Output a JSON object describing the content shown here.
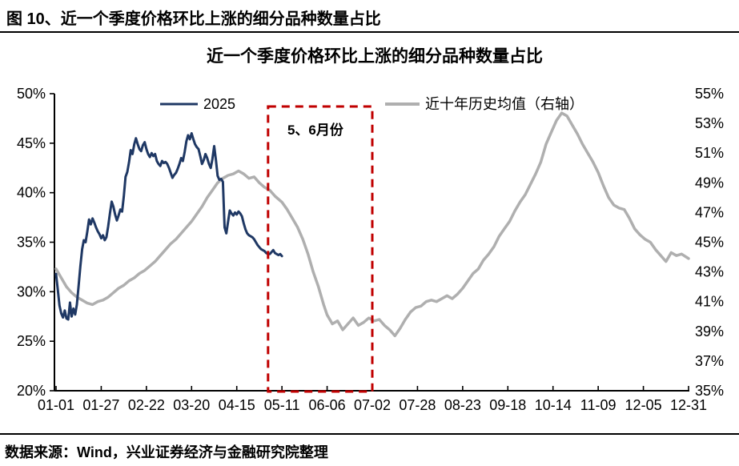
{
  "page": {
    "header_title": "图 10、近一个季度价格环比上涨的细分品种数量占比",
    "source_note": "数据来源：Wind，兴业证券经济与金融研究院整理"
  },
  "chart_data": {
    "type": "line",
    "title": "近一个季度价格环比上涨的细分品种数量占比",
    "grid": false,
    "legend_position": "top",
    "left_axis": {
      "min": 20,
      "max": 50,
      "step": 5,
      "unit": "%",
      "ticks": [
        "20%",
        "25%",
        "30%",
        "35%",
        "40%",
        "45%",
        "50%"
      ]
    },
    "right_axis": {
      "min": 35,
      "max": 55,
      "step": 2,
      "unit": "%",
      "ticks": [
        "35%",
        "37%",
        "39%",
        "41%",
        "43%",
        "45%",
        "47%",
        "49%",
        "51%",
        "53%",
        "55%"
      ]
    },
    "x_ticks": [
      "01-01",
      "01-27",
      "02-22",
      "03-20",
      "04-15",
      "05-11",
      "06-06",
      "07-02",
      "07-28",
      "08-23",
      "09-18",
      "10-14",
      "11-09",
      "12-05",
      "12-31"
    ],
    "annotation": {
      "text": "5、6月份",
      "x_start": "05-03",
      "x_end": "07-02",
      "color": "#C00000"
    },
    "series": [
      {
        "name": "2025",
        "axis": "left",
        "color": "#1F3864",
        "width": 3,
        "points": [
          [
            "01-01",
            31.8
          ],
          [
            "01-02",
            30.2
          ],
          [
            "01-03",
            28.6
          ],
          [
            "01-04",
            27.8
          ],
          [
            "01-05",
            27.4
          ],
          [
            "01-06",
            28.1
          ],
          [
            "01-07",
            27.3
          ],
          [
            "01-08",
            27.2
          ],
          [
            "01-09",
            28.9
          ],
          [
            "01-10",
            27.5
          ],
          [
            "01-11",
            28.3
          ],
          [
            "01-12",
            27.7
          ],
          [
            "01-13",
            28.7
          ],
          [
            "01-14",
            30.6
          ],
          [
            "01-15",
            32.6
          ],
          [
            "01-16",
            34.3
          ],
          [
            "01-17",
            35.2
          ],
          [
            "01-18",
            35.0
          ],
          [
            "01-19",
            36.1
          ],
          [
            "01-20",
            37.3
          ],
          [
            "01-21",
            36.8
          ],
          [
            "01-22",
            37.4
          ],
          [
            "01-23",
            37.0
          ],
          [
            "01-24",
            36.5
          ],
          [
            "01-25",
            36.1
          ],
          [
            "01-26",
            35.8
          ],
          [
            "01-27",
            35.4
          ],
          [
            "01-28",
            35.7
          ],
          [
            "01-29",
            35.2
          ],
          [
            "01-30",
            35.5
          ],
          [
            "01-31",
            36.6
          ],
          [
            "02-01",
            37.9
          ],
          [
            "02-02",
            39.1
          ],
          [
            "02-03",
            38.6
          ],
          [
            "02-04",
            37.8
          ],
          [
            "02-05",
            37.2
          ],
          [
            "02-06",
            37.7
          ],
          [
            "02-07",
            38.3
          ],
          [
            "02-08",
            38.1
          ],
          [
            "02-09",
            39.6
          ],
          [
            "02-10",
            41.6
          ],
          [
            "02-11",
            42.1
          ],
          [
            "02-12",
            43.1
          ],
          [
            "02-13",
            44.3
          ],
          [
            "02-14",
            43.9
          ],
          [
            "02-15",
            44.9
          ],
          [
            "02-16",
            45.5
          ],
          [
            "02-17",
            44.9
          ],
          [
            "02-18",
            44.4
          ],
          [
            "02-19",
            44.2
          ],
          [
            "02-20",
            44.8
          ],
          [
            "02-21",
            45.1
          ],
          [
            "02-22",
            44.4
          ],
          [
            "02-23",
            43.9
          ],
          [
            "02-24",
            43.6
          ],
          [
            "02-25",
            44.0
          ],
          [
            "02-26",
            43.7
          ],
          [
            "02-27",
            43.9
          ],
          [
            "02-28",
            43.2
          ],
          [
            "03-01",
            42.9
          ],
          [
            "03-02",
            42.7
          ],
          [
            "03-03",
            43.2
          ],
          [
            "03-04",
            43.0
          ],
          [
            "03-05",
            43.1
          ],
          [
            "03-06",
            42.9
          ],
          [
            "03-07",
            42.5
          ],
          [
            "03-08",
            42.0
          ],
          [
            "03-09",
            41.5
          ],
          [
            "03-10",
            41.8
          ],
          [
            "03-11",
            42.0
          ],
          [
            "03-12",
            42.4
          ],
          [
            "03-13",
            42.9
          ],
          [
            "03-14",
            43.5
          ],
          [
            "03-15",
            43.2
          ],
          [
            "03-16",
            44.1
          ],
          [
            "03-17",
            45.2
          ],
          [
            "03-18",
            45.8
          ],
          [
            "03-19",
            45.4
          ],
          [
            "03-20",
            46.0
          ],
          [
            "03-21",
            45.4
          ],
          [
            "03-22",
            44.9
          ],
          [
            "03-23",
            44.6
          ],
          [
            "03-24",
            44.4
          ],
          [
            "03-25",
            43.7
          ],
          [
            "03-26",
            42.9
          ],
          [
            "03-27",
            43.3
          ],
          [
            "03-28",
            43.9
          ],
          [
            "03-29",
            43.5
          ],
          [
            "03-30",
            42.9
          ],
          [
            "03-31",
            42.5
          ],
          [
            "04-01",
            43.4
          ],
          [
            "04-02",
            44.7
          ],
          [
            "04-03",
            43.3
          ],
          [
            "04-04",
            41.7
          ],
          [
            "04-05",
            41.3
          ],
          [
            "04-06",
            41.4
          ],
          [
            "04-07",
            41.1
          ],
          [
            "04-08",
            36.5
          ],
          [
            "04-09",
            35.9
          ],
          [
            "04-10",
            37.1
          ],
          [
            "04-11",
            38.2
          ],
          [
            "04-12",
            37.9
          ],
          [
            "04-13",
            37.7
          ],
          [
            "04-14",
            38.0
          ],
          [
            "04-15",
            37.8
          ],
          [
            "04-16",
            38.1
          ],
          [
            "04-17",
            37.9
          ],
          [
            "04-18",
            37.6
          ],
          [
            "04-19",
            36.9
          ],
          [
            "04-20",
            36.3
          ],
          [
            "04-21",
            35.9
          ],
          [
            "04-22",
            35.7
          ],
          [
            "04-23",
            35.6
          ],
          [
            "04-24",
            35.5
          ],
          [
            "04-25",
            35.3
          ],
          [
            "04-26",
            35.0
          ],
          [
            "04-27",
            34.7
          ],
          [
            "04-28",
            34.5
          ],
          [
            "04-29",
            34.3
          ],
          [
            "04-30",
            34.2
          ],
          [
            "05-01",
            34.1
          ],
          [
            "05-02",
            33.9
          ],
          [
            "05-03",
            33.8
          ],
          [
            "05-04",
            33.8
          ],
          [
            "05-05",
            34.0
          ],
          [
            "05-06",
            34.2
          ],
          [
            "05-07",
            33.9
          ],
          [
            "05-08",
            33.8
          ],
          [
            "05-09",
            33.7
          ],
          [
            "05-10",
            33.8
          ],
          [
            "05-11",
            33.6
          ]
        ]
      },
      {
        "name": "近十年历史均值（右轴）",
        "axis": "right",
        "color": "#AFAFAF",
        "width": 3.5,
        "points": [
          [
            "01-01",
            43.2
          ],
          [
            "01-04",
            42.6
          ],
          [
            "01-07",
            42.0
          ],
          [
            "01-10",
            41.6
          ],
          [
            "01-13",
            41.3
          ],
          [
            "01-16",
            41.1
          ],
          [
            "01-19",
            40.9
          ],
          [
            "01-22",
            40.8
          ],
          [
            "01-25",
            41.0
          ],
          [
            "01-28",
            41.1
          ],
          [
            "01-31",
            41.3
          ],
          [
            "02-03",
            41.6
          ],
          [
            "02-06",
            41.9
          ],
          [
            "02-09",
            42.1
          ],
          [
            "02-12",
            42.4
          ],
          [
            "02-15",
            42.6
          ],
          [
            "02-18",
            42.9
          ],
          [
            "02-21",
            43.1
          ],
          [
            "02-24",
            43.4
          ],
          [
            "02-27",
            43.7
          ],
          [
            "03-02",
            44.1
          ],
          [
            "03-05",
            44.5
          ],
          [
            "03-08",
            44.9
          ],
          [
            "03-11",
            45.2
          ],
          [
            "03-14",
            45.6
          ],
          [
            "03-17",
            46.0
          ],
          [
            "03-20",
            46.4
          ],
          [
            "03-23",
            46.9
          ],
          [
            "03-26",
            47.4
          ],
          [
            "03-29",
            48.0
          ],
          [
            "04-01",
            48.5
          ],
          [
            "04-04",
            49.0
          ],
          [
            "04-07",
            49.3
          ],
          [
            "04-10",
            49.5
          ],
          [
            "04-13",
            49.6
          ],
          [
            "04-16",
            49.8
          ],
          [
            "04-19",
            49.6
          ],
          [
            "04-22",
            49.3
          ],
          [
            "04-25",
            49.4
          ],
          [
            "04-28",
            49.0
          ],
          [
            "05-01",
            48.7
          ],
          [
            "05-04",
            48.5
          ],
          [
            "05-07",
            48.1
          ],
          [
            "05-11",
            47.7
          ],
          [
            "05-14",
            47.2
          ],
          [
            "05-17",
            46.6
          ],
          [
            "05-20",
            46.0
          ],
          [
            "05-23",
            45.2
          ],
          [
            "05-26",
            44.2
          ],
          [
            "05-29",
            43.0
          ],
          [
            "06-01",
            42.0
          ],
          [
            "06-04",
            40.8
          ],
          [
            "06-06",
            40.1
          ],
          [
            "06-09",
            39.5
          ],
          [
            "06-12",
            39.7
          ],
          [
            "06-15",
            39.1
          ],
          [
            "06-18",
            39.5
          ],
          [
            "06-21",
            39.9
          ],
          [
            "06-24",
            39.4
          ],
          [
            "06-27",
            39.6
          ],
          [
            "06-30",
            39.9
          ],
          [
            "07-03",
            39.7
          ],
          [
            "07-06",
            39.8
          ],
          [
            "07-09",
            39.4
          ],
          [
            "07-12",
            39.1
          ],
          [
            "07-15",
            38.7
          ],
          [
            "07-18",
            39.2
          ],
          [
            "07-21",
            39.8
          ],
          [
            "07-24",
            40.3
          ],
          [
            "07-27",
            40.6
          ],
          [
            "07-30",
            40.7
          ],
          [
            "08-02",
            41.0
          ],
          [
            "08-05",
            41.1
          ],
          [
            "08-08",
            41.0
          ],
          [
            "08-11",
            41.2
          ],
          [
            "08-14",
            41.4
          ],
          [
            "08-17",
            41.2
          ],
          [
            "08-20",
            41.5
          ],
          [
            "08-23",
            41.9
          ],
          [
            "08-26",
            42.4
          ],
          [
            "08-29",
            42.9
          ],
          [
            "09-01",
            43.2
          ],
          [
            "09-04",
            43.8
          ],
          [
            "09-07",
            44.2
          ],
          [
            "09-10",
            44.7
          ],
          [
            "09-13",
            45.4
          ],
          [
            "09-16",
            45.9
          ],
          [
            "09-19",
            46.4
          ],
          [
            "09-22",
            47.1
          ],
          [
            "09-25",
            47.7
          ],
          [
            "09-28",
            48.2
          ],
          [
            "10-01",
            48.9
          ],
          [
            "10-04",
            49.6
          ],
          [
            "10-07",
            50.4
          ],
          [
            "10-10",
            51.6
          ],
          [
            "10-13",
            52.4
          ],
          [
            "10-16",
            53.2
          ],
          [
            "10-19",
            53.7
          ],
          [
            "10-22",
            53.5
          ],
          [
            "10-25",
            52.9
          ],
          [
            "10-28",
            52.3
          ],
          [
            "10-31",
            51.6
          ],
          [
            "11-03",
            51.0
          ],
          [
            "11-06",
            50.4
          ],
          [
            "11-09",
            49.7
          ],
          [
            "11-12",
            48.8
          ],
          [
            "11-15",
            48.0
          ],
          [
            "11-18",
            47.5
          ],
          [
            "11-21",
            47.3
          ],
          [
            "11-24",
            47.2
          ],
          [
            "11-27",
            46.6
          ],
          [
            "11-30",
            45.9
          ],
          [
            "12-03",
            45.5
          ],
          [
            "12-06",
            45.2
          ],
          [
            "12-09",
            45.0
          ],
          [
            "12-12",
            44.5
          ],
          [
            "12-15",
            44.1
          ],
          [
            "12-18",
            43.7
          ],
          [
            "12-21",
            44.3
          ],
          [
            "12-24",
            44.1
          ],
          [
            "12-27",
            44.2
          ],
          [
            "12-31",
            43.9
          ]
        ]
      }
    ]
  }
}
